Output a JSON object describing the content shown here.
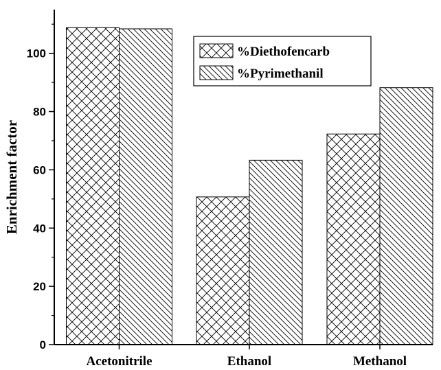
{
  "chart_data": {
    "type": "bar",
    "categories": [
      "Acetonitrile",
      "Ethanol",
      "Methanol"
    ],
    "series": [
      {
        "name": "%Diethofencarb",
        "values": [
          108.8,
          50.7,
          72.3
        ],
        "pattern": "crosshatch"
      },
      {
        "name": "%Pyrimethanil",
        "values": [
          108.4,
          63.3,
          88.2
        ],
        "pattern": "diagonal"
      }
    ],
    "ylabel": "Enrichment factor",
    "xlabel": "",
    "ylim": [
      0,
      115
    ],
    "yticks": [
      0,
      20,
      40,
      60,
      80,
      100
    ],
    "legend_position": "top-right",
    "grid": false,
    "colors": {
      "bar_fill": "#ffffff",
      "stroke": "#000000"
    }
  }
}
